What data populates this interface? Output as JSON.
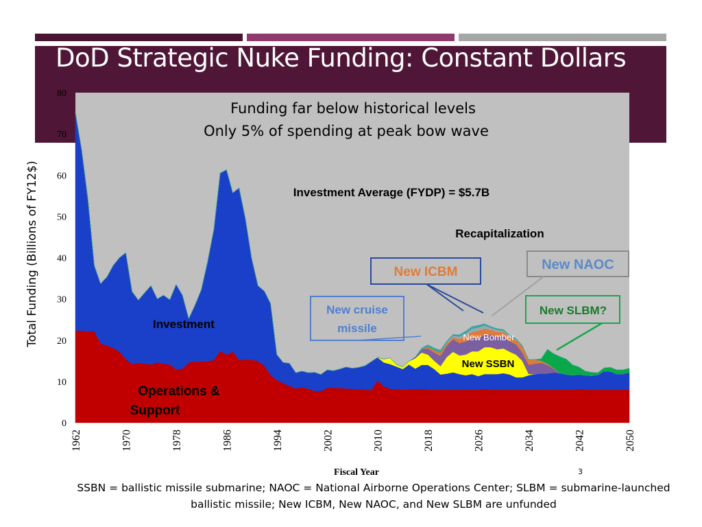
{
  "slide": {
    "title": "DoD Strategic Nuke Funding:  Constant Dollars",
    "number": "3",
    "footnote_line1": "SSBN = ballistic missile submarine;  NAOC = National Airborne Operations Center;  SLBM = submarine-launched",
    "footnote_line2": "ballistic missile;  New ICBM, New NAOC, and New SLBM are unfunded"
  },
  "colors": {
    "title_band": "#4f1637",
    "plot_bg": "#c0c0c0",
    "ops": "#c00000",
    "investment": "#1a3fc9",
    "ssbn": "#ffff00",
    "bomber": "#7b5fa0",
    "icbm": "#e07b39",
    "naoc": "#9aa8b6",
    "slbm": "#0aa84a",
    "cruise": "#3aa6a0"
  },
  "chart_data": {
    "type": "area",
    "subtitle1": "Funding far below historical levels",
    "subtitle2": "Only 5% of spending at peak bow wave",
    "xlabel": "Fiscal Year",
    "ylabel": "Total Funding (Billions of FY12$)",
    "xlim": [
      1962,
      2050
    ],
    "ylim": [
      0,
      80
    ],
    "x_ticks": [
      "1962",
      "1970",
      "1978",
      "1986",
      "1994",
      "2002",
      "2010",
      "2018",
      "2026",
      "2034",
      "2042",
      "2050"
    ],
    "y_ticks": [
      "0",
      "10",
      "20",
      "30",
      "40",
      "50",
      "60",
      "70",
      "80"
    ],
    "annotations": {
      "investment_avg": "Investment  Average (FYDP) = $5.7B",
      "recap": "Recapitalization",
      "investment": "Investment",
      "ops_line1": "Operations &",
      "ops_line2": "Support",
      "new_bomber": "New Bomber",
      "new_ssbn": "New SSBN",
      "new_icbm": "New ICBM",
      "new_naoc": "New NAOC",
      "new_slbm": "New SLBM?",
      "cruise_line1": "New cruise",
      "cruise_line2": "missile"
    },
    "years": [
      1962,
      1963,
      1964,
      1965,
      1966,
      1967,
      1968,
      1969,
      1970,
      1971,
      1972,
      1973,
      1974,
      1975,
      1976,
      1977,
      1978,
      1979,
      1980,
      1981,
      1982,
      1983,
      1984,
      1985,
      1986,
      1987,
      1988,
      1989,
      1990,
      1991,
      1992,
      1993,
      1994,
      1995,
      1996,
      1997,
      1998,
      1999,
      2000,
      2001,
      2002,
      2003,
      2004,
      2005,
      2006,
      2007,
      2008,
      2009,
      2010,
      2011,
      2012,
      2013,
      2014,
      2015,
      2016,
      2017,
      2018,
      2019,
      2020,
      2021,
      2022,
      2023,
      2024,
      2025,
      2026,
      2027,
      2028,
      2029,
      2030,
      2031,
      2032,
      2033,
      2034,
      2035,
      2036,
      2037,
      2038,
      2039,
      2040,
      2041,
      2042,
      2043,
      2044,
      2045,
      2046,
      2047,
      2048,
      2049,
      2050
    ],
    "series": [
      {
        "name": "Operations & Support",
        "values": [
          22.3,
          22.3,
          22.1,
          22.2,
          19.2,
          18.7,
          18.1,
          17.2,
          15.4,
          14.2,
          14.5,
          14.3,
          14.1,
          14.6,
          14.3,
          14.1,
          12.9,
          13.1,
          14.6,
          14.8,
          14.8,
          14.9,
          15.2,
          17.4,
          16.5,
          17.2,
          15.2,
          15.3,
          15.3,
          14.9,
          13.8,
          11.6,
          10.3,
          9.6,
          8.9,
          8.3,
          8.6,
          8.2,
          7.7,
          7.7,
          8.4,
          8.5,
          8.4,
          8.3,
          8.2,
          8.1,
          8.0,
          7.9,
          10.2,
          8.8,
          8.2,
          8.1,
          8.0,
          8.1,
          8.1,
          8.2,
          8.0,
          8.0,
          8.0,
          8.0,
          8.0,
          8.0,
          8.0,
          8.0,
          8.0,
          8.2,
          8.0,
          8.0,
          8.0,
          8.0,
          8.0,
          8.0,
          8.0,
          8.0,
          8.0,
          8.0,
          8.0,
          8.0,
          8.0,
          8.0,
          8.2,
          8.0,
          8.0,
          8.0,
          8.0,
          8.0,
          8.0,
          8.0,
          8.0
        ]
      },
      {
        "name": "Investment",
        "values": [
          52.8,
          43.7,
          31.8,
          15.9,
          14.5,
          16.6,
          20.0,
          22.8,
          25.8,
          17.6,
          15.2,
          17.2,
          19.1,
          15.4,
          16.6,
          15.7,
          20.6,
          17.8,
          10.6,
          13.7,
          17.4,
          24.1,
          31.7,
          43.1,
          44.8,
          38.5,
          41.7,
          34.2,
          24.5,
          18.3,
          18.1,
          17.3,
          6.2,
          5.0,
          5.5,
          3.8,
          3.9,
          3.9,
          4.5,
          4.0,
          4.4,
          4.1,
          4.6,
          5.2,
          5.0,
          5.3,
          5.8,
          6.9,
          5.6,
          5.8,
          6.0,
          5.5,
          5.0,
          6.0,
          5.0,
          5.8,
          6.0,
          5.0,
          3.7,
          3.9,
          4.2,
          3.8,
          3.5,
          3.8,
          3.3,
          3.6,
          3.8,
          3.8,
          4.0,
          3.7,
          3.0,
          3.0,
          3.5,
          3.8,
          4.0,
          4.0,
          4.2,
          4.0,
          3.7,
          3.5,
          3.5,
          3.5,
          3.4,
          3.6,
          4.5,
          4.4,
          3.8,
          3.8,
          4.2
        ]
      },
      {
        "name": "New SSBN",
        "values": [
          0,
          0,
          0,
          0,
          0,
          0,
          0,
          0,
          0,
          0,
          0,
          0,
          0,
          0,
          0,
          0,
          0,
          0,
          0,
          0,
          0,
          0,
          0,
          0,
          0,
          0,
          0,
          0,
          0,
          0,
          0,
          0,
          0,
          0,
          0,
          0,
          0,
          0,
          0,
          0,
          0,
          0,
          0,
          0,
          0,
          0,
          0,
          0,
          0,
          0.8,
          1.5,
          0.5,
          0.5,
          0.8,
          2.5,
          3.0,
          2.5,
          2.0,
          2.0,
          4.0,
          5.0,
          4.5,
          5.0,
          5.5,
          6.0,
          6.5,
          6.5,
          6.0,
          6.0,
          5.5,
          5.5,
          4.0,
          0.3,
          0,
          0,
          0,
          0,
          0,
          0,
          0,
          0,
          0,
          0,
          0,
          0,
          0,
          0,
          0,
          0
        ]
      },
      {
        "name": "New Bomber",
        "values": [
          0,
          0,
          0,
          0,
          0,
          0,
          0,
          0,
          0,
          0,
          0,
          0,
          0,
          0,
          0,
          0,
          0,
          0,
          0,
          0,
          0,
          0,
          0,
          0,
          0,
          0,
          0,
          0,
          0,
          0,
          0,
          0,
          0,
          0,
          0,
          0,
          0,
          0,
          0,
          0,
          0,
          0,
          0,
          0,
          0,
          0,
          0,
          0,
          0,
          0,
          0,
          0,
          0,
          0,
          0.3,
          0.8,
          1.5,
          2.0,
          2.5,
          2.8,
          3.0,
          3.0,
          3.2,
          3.2,
          3.2,
          3.0,
          3.0,
          3.0,
          3.0,
          2.5,
          2.5,
          2.0,
          2.2,
          2.5,
          2.5,
          2.0,
          0.8,
          0,
          0,
          0,
          0,
          0,
          0,
          0,
          0,
          0,
          0,
          0,
          0
        ]
      },
      {
        "name": "New ICBM",
        "values": [
          0,
          0,
          0,
          0,
          0,
          0,
          0,
          0,
          0,
          0,
          0,
          0,
          0,
          0,
          0,
          0,
          0,
          0,
          0,
          0,
          0,
          0,
          0,
          0,
          0,
          0,
          0,
          0,
          0,
          0,
          0,
          0,
          0,
          0,
          0,
          0,
          0,
          0,
          0,
          0,
          0,
          0,
          0,
          0,
          0,
          0,
          0,
          0,
          0,
          0,
          0,
          0,
          0,
          0,
          0,
          0,
          0.4,
          0.6,
          0.8,
          0.5,
          0.5,
          1.0,
          1.2,
          1.5,
          1.8,
          1.5,
          1.2,
          1.2,
          1.0,
          1.0,
          1.0,
          1.5,
          1.3,
          1.0,
          0.5,
          0.3,
          0.2,
          0,
          0,
          0,
          0,
          0,
          0,
          0,
          0,
          0,
          0,
          0,
          0
        ]
      },
      {
        "name": "New NAOC",
        "values": [
          0,
          0,
          0,
          0,
          0,
          0,
          0,
          0,
          0,
          0,
          0,
          0,
          0,
          0,
          0,
          0,
          0,
          0,
          0,
          0,
          0,
          0,
          0,
          0,
          0,
          0,
          0,
          0,
          0,
          0,
          0,
          0,
          0,
          0,
          0,
          0,
          0,
          0,
          0,
          0,
          0,
          0,
          0,
          0,
          0,
          0,
          0,
          0,
          0,
          0,
          0,
          0,
          0,
          0,
          0,
          0,
          0,
          0,
          0,
          0.3,
          0.4,
          0.6,
          0.8,
          0.8,
          0.8,
          0.8,
          0.5,
          0.5,
          0.3,
          0.3,
          0.2,
          0,
          0,
          0,
          0,
          0,
          0,
          0,
          0,
          0,
          0,
          0,
          0,
          0,
          0,
          0,
          0,
          0,
          0
        ]
      },
      {
        "name": "New SLBM?",
        "values": [
          0,
          0,
          0,
          0,
          0,
          0,
          0,
          0,
          0,
          0,
          0,
          0,
          0,
          0,
          0,
          0,
          0,
          0,
          0,
          0,
          0,
          0,
          0,
          0,
          0,
          0,
          0,
          0,
          0,
          0,
          0,
          0,
          0,
          0,
          0,
          0,
          0,
          0,
          0,
          0,
          0,
          0,
          0,
          0,
          0,
          0,
          0,
          0,
          0,
          0,
          0,
          0,
          0,
          0,
          0,
          0,
          0,
          0,
          0,
          0,
          0,
          0,
          0,
          0,
          0,
          0,
          0,
          0,
          0,
          0,
          0,
          0,
          0,
          0,
          0.5,
          3.5,
          3.5,
          4.0,
          3.7,
          2.5,
          1.8,
          1.0,
          0.8,
          0.5,
          0.8,
          1.0,
          1.0,
          1.0,
          1.0
        ]
      },
      {
        "name": "New cruise missile",
        "values": [
          0,
          0,
          0,
          0,
          0,
          0,
          0,
          0,
          0,
          0,
          0,
          0,
          0,
          0,
          0,
          0,
          0,
          0,
          0,
          0,
          0,
          0,
          0,
          0,
          0,
          0,
          0,
          0,
          0,
          0,
          0,
          0,
          0,
          0,
          0,
          0,
          0,
          0,
          0,
          0,
          0,
          0,
          0,
          0,
          0,
          0,
          0,
          0,
          0,
          0,
          0,
          0,
          0,
          0,
          0,
          0.3,
          0.5,
          0.5,
          0.6,
          0.3,
          0.3,
          0.4,
          0.5,
          0.5,
          0.5,
          0.4,
          0.3,
          0.3,
          0.3,
          0.2,
          0.2,
          0.2,
          0,
          0,
          0,
          0,
          0,
          0,
          0,
          0,
          0,
          0,
          0,
          0,
          0,
          0,
          0,
          0,
          0
        ]
      }
    ]
  }
}
